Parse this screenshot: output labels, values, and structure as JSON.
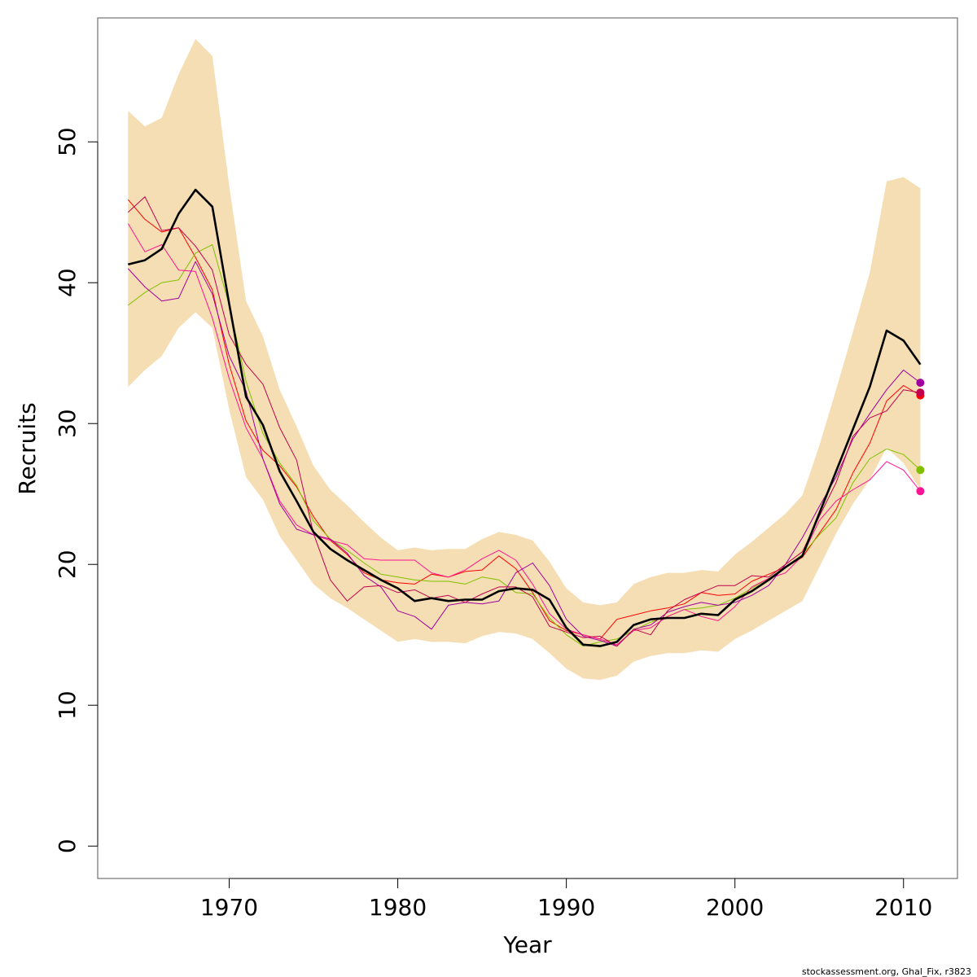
{
  "chart_data": {
    "type": "line",
    "xlabel": "Year",
    "ylabel": "Recruits",
    "xlim": [
      1962.2,
      2013.2
    ],
    "ylim": [
      -2.3,
      58.8
    ],
    "xticks": [
      1970,
      1980,
      1990,
      2000,
      2010
    ],
    "yticks": [
      0,
      10,
      20,
      30,
      40,
      50
    ],
    "grid": false,
    "legend": "none",
    "caption": "stockassessment.org, Ghal_Fix, r3823",
    "colors": {
      "band": "#f5deb3",
      "main": "#000000"
    },
    "x": [
      1964,
      1965,
      1966,
      1967,
      1968,
      1969,
      1970,
      1971,
      1972,
      1973,
      1974,
      1975,
      1976,
      1977,
      1978,
      1979,
      1980,
      1981,
      1982,
      1983,
      1984,
      1985,
      1986,
      1987,
      1988,
      1989,
      1990,
      1991,
      1992,
      1993,
      1994,
      1995,
      1996,
      1997,
      1998,
      1999,
      2000,
      2001,
      2002,
      2003,
      2004,
      2005,
      2006,
      2007,
      2008,
      2009,
      2010,
      2011
    ],
    "band_upper": [
      52.2,
      51.1,
      51.7,
      54.8,
      57.3,
      56.1,
      46.9,
      38.7,
      36.2,
      32.4,
      29.8,
      27.0,
      25.3,
      24.2,
      23.0,
      21.9,
      21.0,
      21.2,
      21.0,
      21.1,
      21.1,
      21.8,
      22.3,
      22.1,
      21.7,
      20.2,
      18.3,
      17.3,
      17.1,
      17.3,
      18.6,
      19.1,
      19.4,
      19.4,
      19.6,
      19.5,
      20.7,
      21.6,
      22.6,
      23.6,
      24.9,
      28.4,
      32.4,
      36.5,
      40.7,
      47.2,
      47.5,
      46.7
    ],
    "band_lower": [
      32.6,
      33.8,
      34.8,
      36.8,
      37.9,
      36.8,
      31.0,
      26.2,
      24.6,
      22.0,
      20.3,
      18.6,
      17.6,
      16.9,
      16.1,
      15.3,
      14.5,
      14.7,
      14.5,
      14.5,
      14.4,
      14.9,
      15.2,
      15.1,
      14.7,
      13.7,
      12.6,
      11.9,
      11.8,
      12.1,
      13.1,
      13.5,
      13.7,
      13.7,
      13.9,
      13.8,
      14.7,
      15.3,
      16.0,
      16.7,
      17.4,
      19.8,
      22.2,
      24.3,
      26.0,
      28.3,
      27.2,
      25.3
    ],
    "series": [
      {
        "color": "#000000",
        "width": 2.6,
        "values": [
          41.3,
          41.6,
          42.4,
          44.9,
          46.6,
          45.4,
          38.5,
          31.9,
          29.9,
          26.6,
          24.5,
          22.3,
          21.1,
          20.3,
          19.6,
          18.9,
          18.3,
          17.4,
          17.6,
          17.4,
          17.5,
          17.5,
          18.1,
          18.3,
          18.2,
          17.5,
          15.5,
          14.3,
          14.2,
          14.5,
          15.7,
          16.1,
          16.2,
          16.2,
          16.5,
          16.4,
          17.5,
          18.1,
          18.9,
          19.8,
          20.6,
          23.6,
          26.6,
          29.6,
          32.6,
          36.6,
          35.9,
          34.2
        ],
        "end_marker": false
      },
      {
        "color": "#ff0000",
        "width": 1,
        "values": [
          45.9,
          44.5,
          43.6,
          43.9,
          41.8,
          39.5,
          34.2,
          30.2,
          28.1,
          27.0,
          25.5,
          23.4,
          21.7,
          20.7,
          19.4,
          18.9,
          18.7,
          18.6,
          19.3,
          19.1,
          19.5,
          19.6,
          20.6,
          19.7,
          18.0,
          16.0,
          15.3,
          15.0,
          14.7,
          16.1,
          16.4,
          16.7,
          16.9,
          17.2,
          18.0,
          17.8,
          17.9,
          18.8,
          19.3,
          19.8,
          20.5,
          22.2,
          23.9,
          26.5,
          28.6,
          31.6,
          32.7,
          32.0
        ],
        "end_marker": true
      },
      {
        "color": "#80c000",
        "width": 1,
        "values": [
          38.4,
          39.3,
          40.0,
          40.2,
          42.1,
          42.7,
          38.4,
          33.0,
          29.3,
          27.2,
          25.6,
          23.1,
          21.8,
          21.0,
          20.1,
          19.3,
          19.1,
          18.9,
          18.8,
          18.8,
          18.6,
          19.1,
          18.9,
          18.0,
          17.9,
          16.2,
          15.0,
          14.2,
          14.5,
          14.7,
          15.3,
          15.9,
          16.3,
          16.8,
          16.9,
          17.1,
          17.6,
          18.3,
          19.0,
          19.8,
          20.7,
          22.1,
          23.3,
          25.8,
          27.5,
          28.2,
          27.8,
          26.7
        ],
        "end_marker": true
      },
      {
        "color": "#ff1493",
        "width": 1,
        "values": [
          44.2,
          42.2,
          42.7,
          40.9,
          40.8,
          37.5,
          33.2,
          29.7,
          27.5,
          24.5,
          22.8,
          22.1,
          21.7,
          21.4,
          20.4,
          20.3,
          20.3,
          20.3,
          19.4,
          19.1,
          19.6,
          20.4,
          21.0,
          20.3,
          18.6,
          16.5,
          15.4,
          15.0,
          14.7,
          14.3,
          15.3,
          15.5,
          16.3,
          16.8,
          16.3,
          16.0,
          17.0,
          18.4,
          19.0,
          19.4,
          20.6,
          23.1,
          24.5,
          25.3,
          26.0,
          27.3,
          26.7,
          25.2
        ],
        "end_marker": true
      },
      {
        "color": "#a000a0",
        "width": 1,
        "values": [
          41.0,
          39.7,
          38.7,
          38.9,
          41.5,
          39.2,
          34.8,
          32.3,
          27.5,
          24.3,
          22.5,
          22.1,
          21.8,
          20.8,
          19.2,
          18.4,
          16.7,
          16.3,
          15.4,
          17.1,
          17.3,
          17.2,
          17.4,
          19.4,
          20.1,
          18.5,
          16.1,
          14.9,
          14.6,
          14.2,
          15.4,
          15.7,
          16.6,
          17.0,
          17.3,
          17.1,
          17.3,
          17.8,
          18.5,
          20.0,
          21.9,
          24.1,
          26.2,
          28.9,
          30.7,
          32.4,
          33.8,
          32.9
        ],
        "end_marker": true
      },
      {
        "color": "#c00050",
        "width": 1,
        "values": [
          45.0,
          46.1,
          43.7,
          43.9,
          42.6,
          40.9,
          36.3,
          34.2,
          32.8,
          29.7,
          27.4,
          22.2,
          18.9,
          17.4,
          18.4,
          18.5,
          18.0,
          18.2,
          17.6,
          17.8,
          17.3,
          17.9,
          18.4,
          18.4,
          17.7,
          15.6,
          15.2,
          14.8,
          14.9,
          14.2,
          15.4,
          15.0,
          16.7,
          17.5,
          18.0,
          18.5,
          18.5,
          19.2,
          19.1,
          20.0,
          20.9,
          23.4,
          25.8,
          29.1,
          30.4,
          30.9,
          32.4,
          32.2
        ],
        "end_marker": true
      }
    ]
  }
}
